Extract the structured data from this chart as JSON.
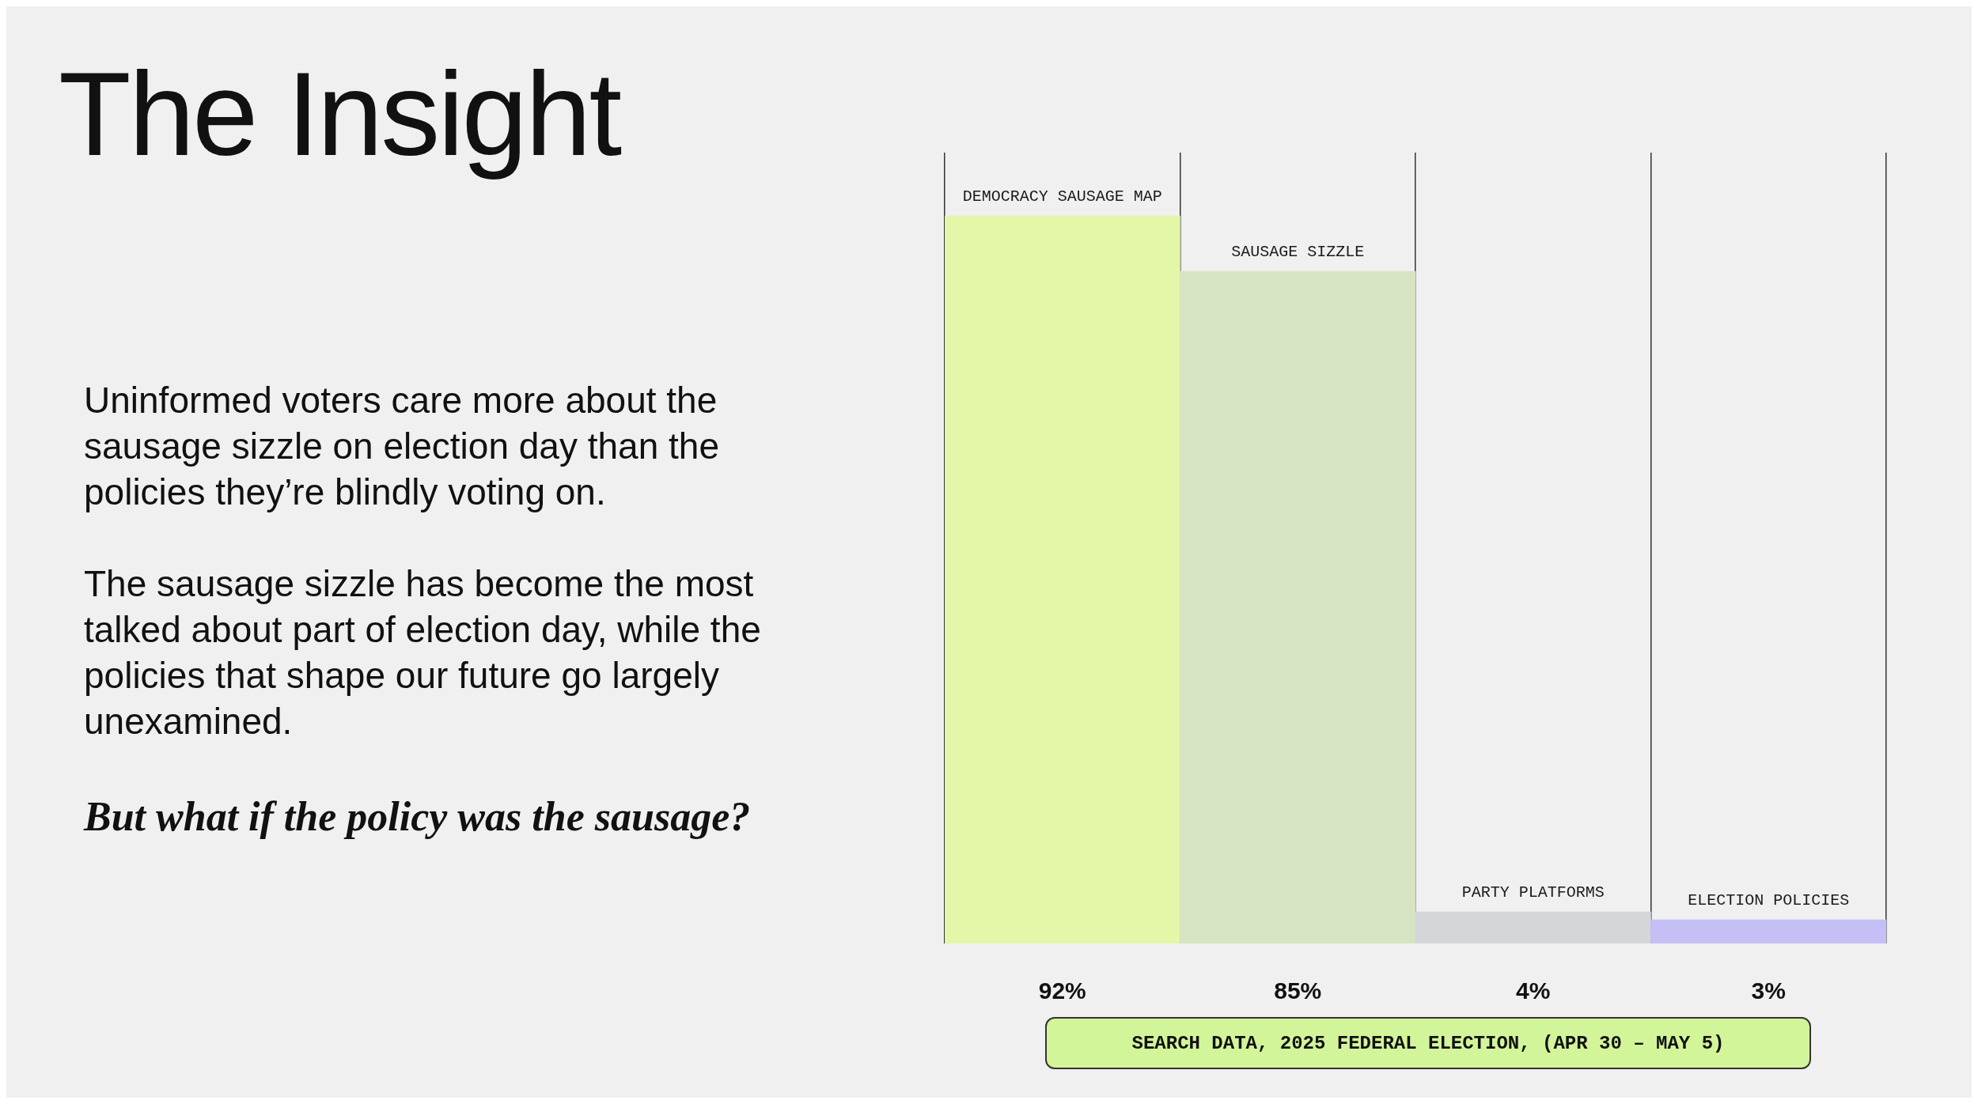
{
  "chart_data": {
    "type": "bar",
    "title": "The Insight",
    "categories": [
      "DEMOCRACY SAUSAGE MAP",
      "SAUSAGE SIZZLE",
      "PARTY PLATFORMS",
      "ELECTION POLICIES"
    ],
    "values": [
      92,
      85,
      4,
      3
    ],
    "colors": [
      "#e4f7a8",
      "#d7e4c4",
      "#d3d7da",
      "#c4bff5"
    ],
    "value_labels": [
      "92%",
      "85%",
      "4%",
      "3%"
    ],
    "tick_labels": false,
    "grid": "x",
    "annotations": [
      "Uninformed voters care more about the sausage sizzle on election day than the policies they’re blindly voting on.",
      "The sausage sizzle has become the most talked about part of election day, while the policies that shape our future go largely unexamined.",
      "But what if the policy was the sausage?",
      "SEARCH DATA, 2025 FEDERAL ELECTION, (APR 30 – MAY 5)"
    ]
  }
}
